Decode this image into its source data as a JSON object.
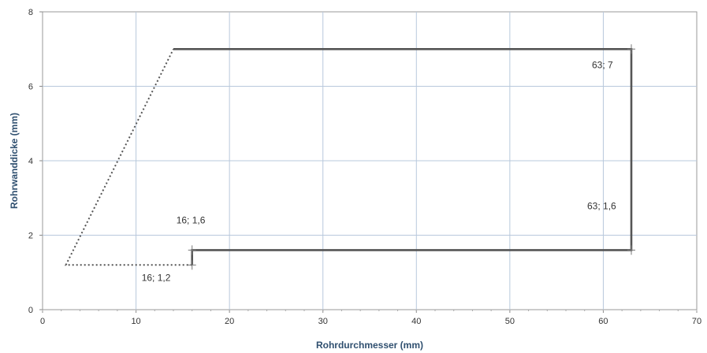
{
  "chart_data": {
    "type": "line",
    "xlabel": "Rohrdurchmesser (mm)",
    "ylabel": "Rohrwanddicke (mm)",
    "xlim": [
      0,
      70
    ],
    "ylim": [
      0,
      8
    ],
    "xticks": [
      0,
      10,
      20,
      30,
      40,
      50,
      60,
      70
    ],
    "yticks": [
      0,
      2,
      4,
      6,
      8
    ],
    "grid": true,
    "legend": "none",
    "series": [
      {
        "style": "solid",
        "color": "#555555",
        "points": [
          [
            16,
            1.2
          ],
          [
            16,
            1.6
          ],
          [
            63,
            1.6
          ],
          [
            63,
            7
          ],
          [
            14,
            7
          ]
        ]
      },
      {
        "style": "dotted",
        "color": "#555555",
        "points": [
          [
            16,
            1.2
          ],
          [
            2.5,
            1.2
          ],
          [
            14,
            7
          ]
        ]
      }
    ],
    "annotations": [
      {
        "text": "63; 7",
        "x": 63,
        "y": 7
      },
      {
        "text": "63; 1,6",
        "x": 63,
        "y": 1.6
      },
      {
        "text": "16; 1,6",
        "x": 16,
        "y": 1.6
      },
      {
        "text": "16; 1,2",
        "x": 16,
        "y": 1.2
      }
    ]
  }
}
